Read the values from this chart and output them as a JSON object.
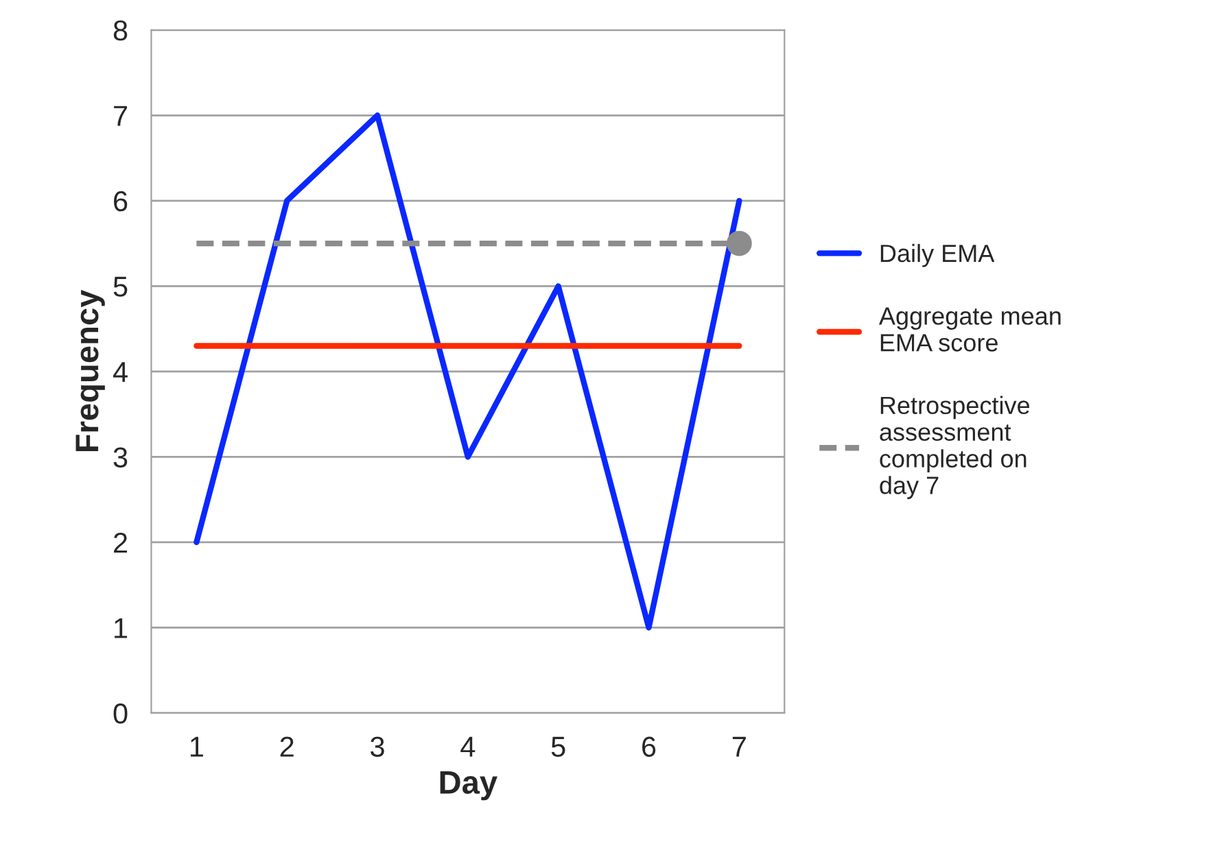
{
  "chart_data": {
    "type": "line",
    "xlabel": "Day",
    "ylabel": "Frequency",
    "categories": [
      "1",
      "2",
      "3",
      "4",
      "5",
      "6",
      "7"
    ],
    "ylim": [
      0,
      8
    ],
    "yticks": [
      0,
      1,
      2,
      3,
      4,
      5,
      6,
      7,
      8
    ],
    "grid": "y",
    "legend": "right",
    "series": [
      {
        "name": "Daily EMA",
        "color": "#0a28ff",
        "line_style": "solid",
        "marker": "none",
        "values": [
          2,
          6,
          7,
          3,
          5,
          1,
          6
        ]
      },
      {
        "name": "Aggregate mean EMA score",
        "color": "#ff2a00",
        "line_style": "solid",
        "marker": "none",
        "values": [
          4.3,
          4.3,
          4.3,
          4.3,
          4.3,
          4.3,
          4.3
        ]
      },
      {
        "name": "Retrospective assessment completed on day 7",
        "color": "#8c8c8c",
        "line_style": "dashed",
        "marker": "none",
        "values": [
          5.5,
          5.5,
          5.5,
          5.5,
          5.5,
          5.5,
          5.5
        ]
      },
      {
        "color": "#8c8c8c",
        "type": "scatter",
        "marker": "circle",
        "x": [
          "7"
        ],
        "values": [
          5.5
        ]
      }
    ]
  }
}
